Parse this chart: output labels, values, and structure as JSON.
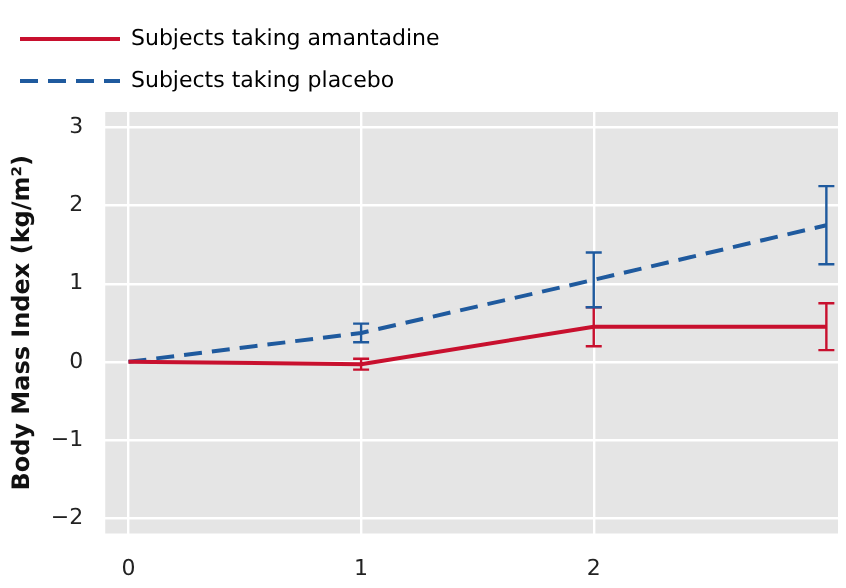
{
  "chart_data": {
    "type": "line",
    "ylabel": "Body Mass Index (kg/m²)",
    "x": [
      0,
      1,
      2,
      3
    ],
    "xlim": [
      -0.1,
      3.05
    ],
    "xticks": [
      0,
      1,
      2
    ],
    "ylim": [
      -2.2,
      3.2
    ],
    "yticks": [
      {
        "value": -2,
        "label": "−2"
      },
      {
        "value": -1,
        "label": "−1"
      },
      0,
      1,
      2,
      3
    ],
    "series": [
      {
        "name": "Subjects taking amantadine",
        "color": "#c8102e",
        "line_style": "solid",
        "values": [
          0,
          -0.03,
          0.45,
          0.45
        ],
        "errors": [
          null,
          0.07,
          [
            0.2,
            0.7
          ],
          [
            0.15,
            0.75
          ]
        ]
      },
      {
        "name": "Subjects taking placebo",
        "color": "#1f5a9e",
        "line_style": "dashed",
        "values": [
          0,
          0.37,
          1.05,
          1.75
        ],
        "errors": [
          null,
          0.12,
          0.35,
          0.5
        ]
      }
    ],
    "grid": true,
    "legend": "top left",
    "marker": "none"
  }
}
